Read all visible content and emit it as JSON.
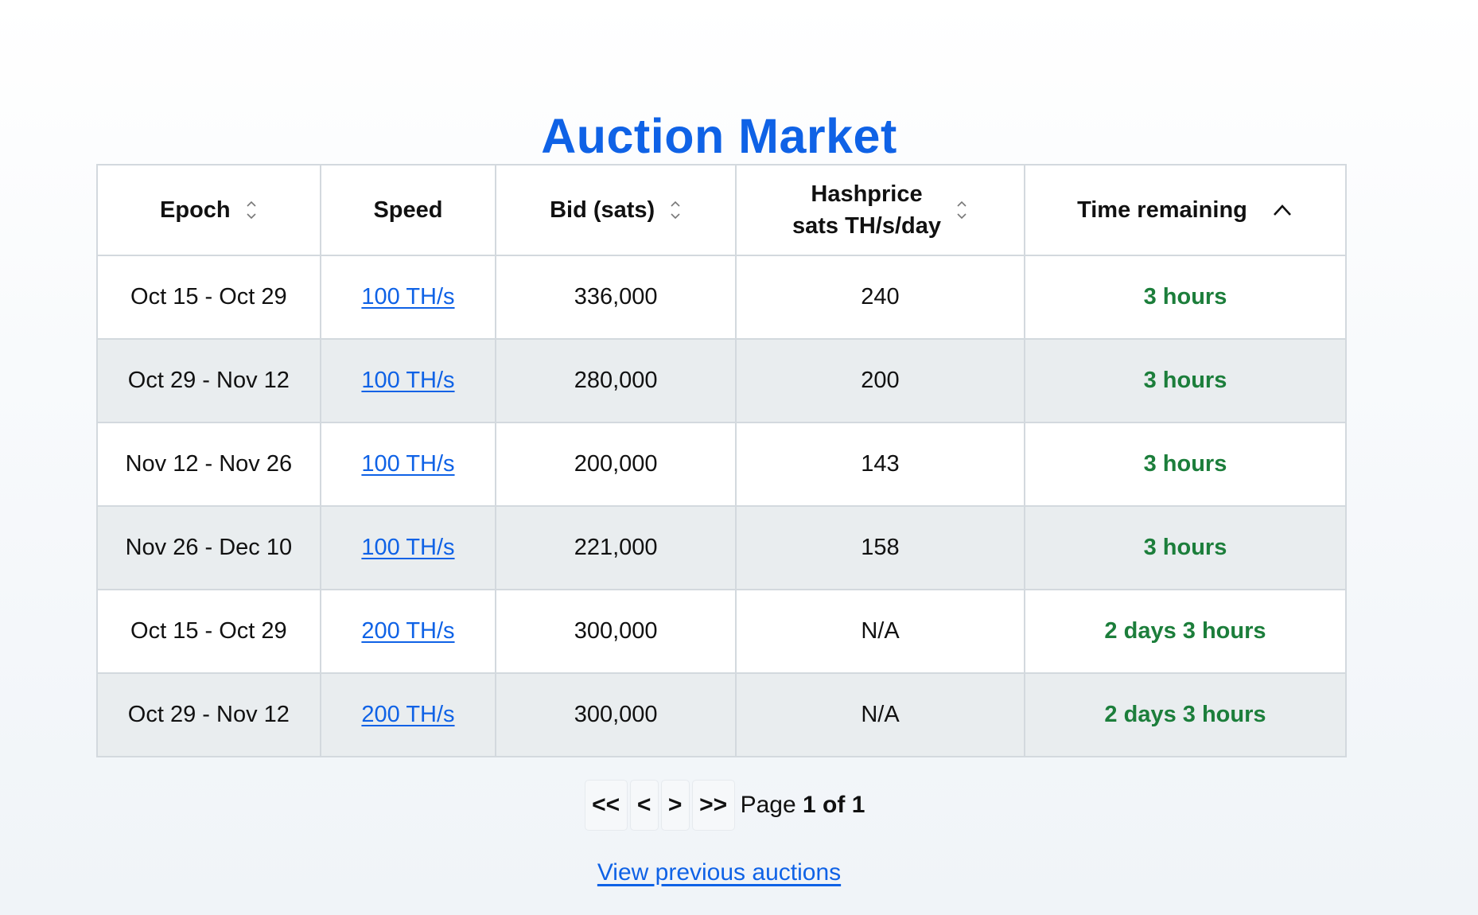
{
  "title": "Auction Market",
  "table": {
    "headers": {
      "epoch": "Epoch",
      "speed": "Speed",
      "bid": "Bid (sats)",
      "hashprice_line1": "Hashprice",
      "hashprice_line2": "sats TH/s/day",
      "time_remaining": "Time remaining"
    },
    "rows": [
      {
        "epoch": "Oct 15 - Oct 29",
        "speed": "100 TH/s",
        "bid": "336,000",
        "hashprice": "240",
        "time": "3 hours"
      },
      {
        "epoch": "Oct 29 - Nov 12",
        "speed": "100 TH/s",
        "bid": "280,000",
        "hashprice": "200",
        "time": "3 hours"
      },
      {
        "epoch": "Nov 12 - Nov 26",
        "speed": "100 TH/s",
        "bid": "200,000",
        "hashprice": "143",
        "time": "3 hours"
      },
      {
        "epoch": "Nov 26 - Dec 10",
        "speed": "100 TH/s",
        "bid": "221,000",
        "hashprice": "158",
        "time": "3 hours"
      },
      {
        "epoch": "Oct 15 - Oct 29",
        "speed": "200 TH/s",
        "bid": "300,000",
        "hashprice": "N/A",
        "time": "2 days 3 hours"
      },
      {
        "epoch": "Oct 29 - Nov 12",
        "speed": "200 TH/s",
        "bid": "300,000",
        "hashprice": "N/A",
        "time": "2 days 3 hours"
      }
    ]
  },
  "pagination": {
    "first_label": "<<",
    "prev_label": "<",
    "next_label": ">",
    "last_label": ">>",
    "page_prefix": "Page",
    "page_info": "1 of 1"
  },
  "view_previous_label": "View previous auctions",
  "colors": {
    "accent": "#0f62e6",
    "time_green": "#1c7e3b",
    "row_alt": "#e9edef",
    "border": "#d3d9de"
  },
  "icons": {
    "epoch_sort": "sort-updown-icon",
    "bid_sort": "sort-updown-icon",
    "hashprice_sort": "sort-updown-icon",
    "time_sort": "sort-ascending-icon"
  }
}
